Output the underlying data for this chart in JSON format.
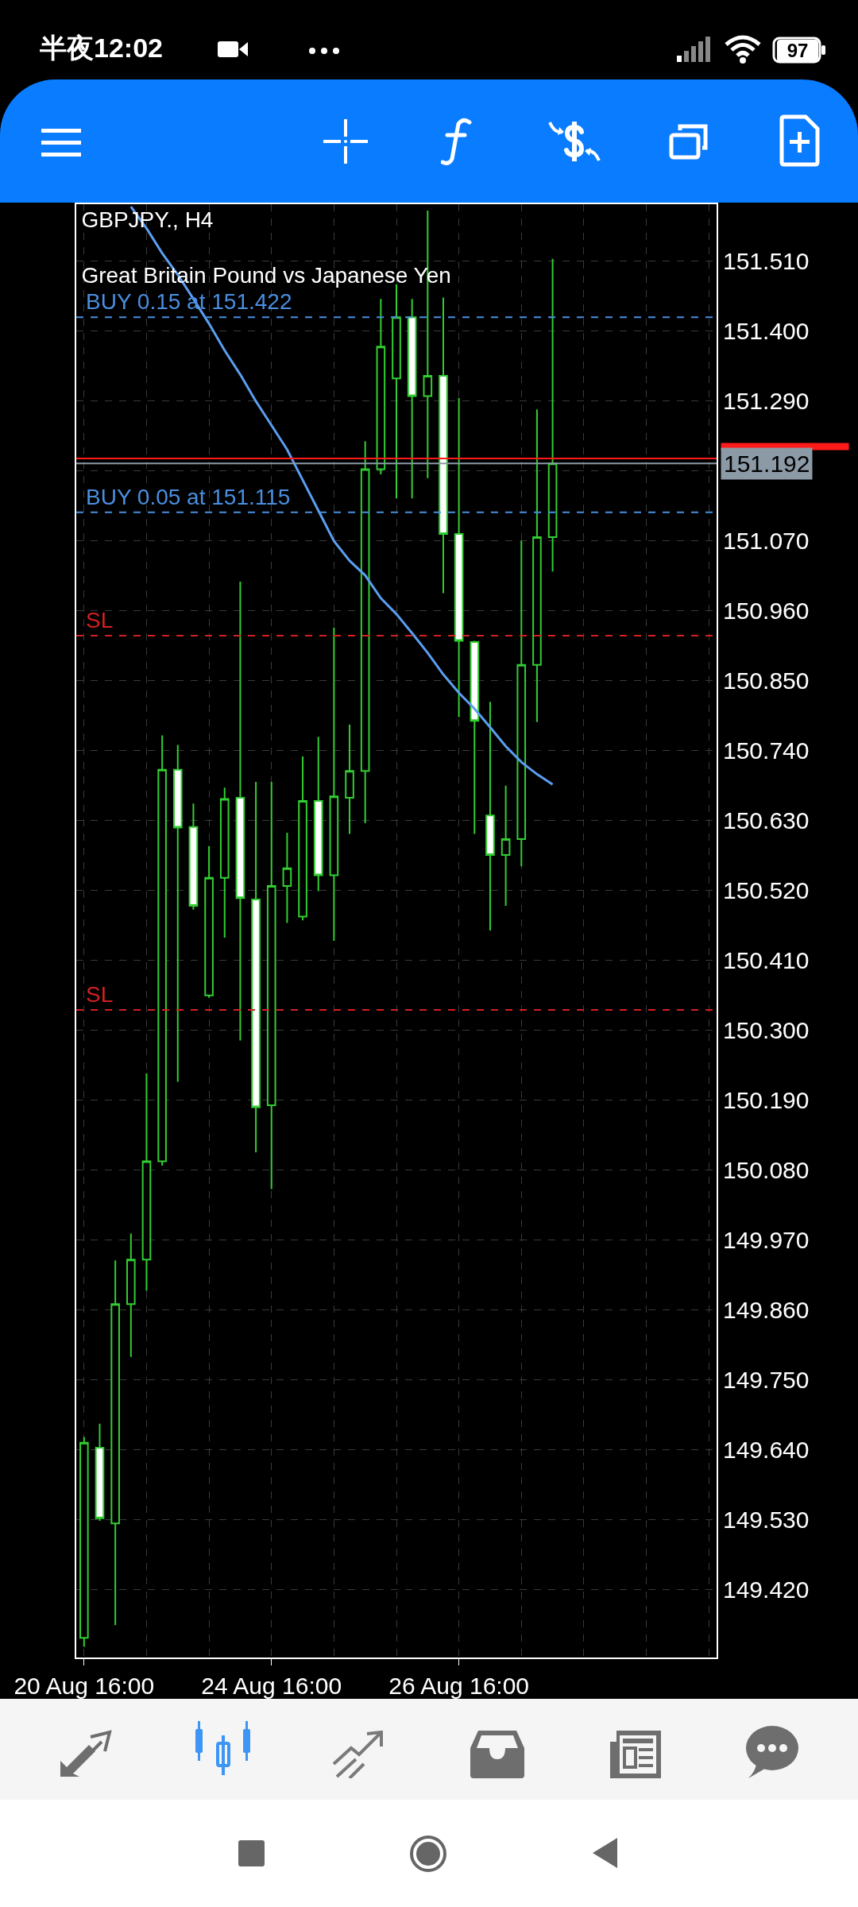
{
  "chart_data": {
    "type": "candlestick",
    "title": "GBPJPY., H4",
    "subtitle": "Great Britain Pound vs Japanese Yen",
    "categories": [
      "20 Aug 16:00",
      null,
      null,
      null,
      null,
      null,
      null,
      null,
      null,
      null,
      null,
      null,
      "24 Aug 16:00",
      null,
      null,
      null,
      null,
      null,
      null,
      null,
      null,
      null,
      null,
      null,
      "26 Aug 16:00",
      null,
      null,
      null,
      null,
      null,
      null,
      null,
      null,
      null,
      null,
      null,
      null,
      null,
      null,
      null,
      null
    ],
    "color": "#32cd32",
    "ohlc": [
      [
        149.344,
        149.66,
        149.33,
        149.651
      ],
      [
        149.643,
        149.681,
        149.528,
        149.532
      ],
      [
        149.524,
        149.938,
        149.364,
        149.869
      ],
      [
        149.869,
        149.98,
        149.786,
        149.939
      ],
      [
        149.939,
        150.232,
        149.89,
        150.094
      ],
      [
        150.094,
        150.764,
        150.087,
        150.71
      ],
      [
        150.71,
        150.749,
        150.219,
        150.619
      ],
      [
        150.62,
        150.657,
        150.49,
        150.496
      ],
      [
        150.355,
        150.59,
        150.351,
        150.54
      ],
      [
        150.54,
        150.682,
        150.446,
        150.664
      ],
      [
        150.666,
        151.006,
        150.284,
        150.508
      ],
      [
        150.506,
        150.691,
        150.108,
        150.179
      ],
      [
        150.182,
        150.691,
        150.05,
        150.527
      ],
      [
        150.527,
        150.611,
        150.469,
        150.555
      ],
      [
        150.479,
        150.731,
        150.473,
        150.661
      ],
      [
        150.661,
        150.762,
        150.519,
        150.544
      ],
      [
        150.544,
        150.934,
        150.441,
        150.668
      ],
      [
        150.666,
        150.781,
        150.609,
        150.708
      ],
      [
        150.708,
        151.227,
        150.626,
        151.183
      ],
      [
        151.183,
        151.451,
        151.175,
        151.376
      ],
      [
        151.326,
        151.474,
        151.137,
        151.422
      ],
      [
        151.422,
        151.451,
        151.137,
        151.298
      ],
      [
        151.298,
        151.59,
        151.169,
        151.33
      ],
      [
        151.33,
        151.453,
        150.988,
        151.081
      ],
      [
        151.081,
        151.295,
        150.793,
        150.913
      ],
      [
        150.911,
        150.913,
        150.609,
        150.787
      ],
      [
        150.638,
        150.817,
        150.457,
        150.576
      ],
      [
        150.576,
        150.685,
        150.496,
        150.601
      ],
      [
        150.601,
        151.07,
        150.558,
        150.875
      ],
      [
        150.875,
        151.277,
        150.785,
        151.076
      ],
      [
        151.076,
        151.514,
        151.022,
        151.192
      ],
      null,
      null,
      null,
      null,
      null,
      null,
      null,
      null,
      null,
      null
    ],
    "series": [
      {
        "type": "line",
        "color": "#5b9ef0",
        "values": [
          null,
          null,
          null,
          151.596,
          151.562,
          151.523,
          151.489,
          151.451,
          151.412,
          151.37,
          151.332,
          151.29,
          151.252,
          151.214,
          151.166,
          151.118,
          151.07,
          151.039,
          151.016,
          150.98,
          150.955,
          150.925,
          150.894,
          150.86,
          150.831,
          150.806,
          150.777,
          150.747,
          150.722,
          150.703,
          150.687,
          null,
          null,
          null,
          null,
          null,
          null,
          null,
          null,
          null,
          null
        ]
      }
    ],
    "ylim": [
      149.313,
      151.6
    ],
    "yticks": [
      {
        "value": 151.51,
        "label": "151.510"
      },
      {
        "value": 151.4,
        "label": "151.400"
      },
      {
        "value": 151.29,
        "label": "151.290"
      },
      {
        "value": 151.18,
        "label": null
      },
      {
        "value": 151.07,
        "label": "151.070"
      },
      {
        "value": 150.96,
        "label": "150.960"
      },
      {
        "value": 150.85,
        "label": "150.850"
      },
      {
        "value": 150.74,
        "label": "150.740"
      },
      {
        "value": 150.63,
        "label": "150.630"
      },
      {
        "value": 150.52,
        "label": "150.520"
      },
      {
        "value": 150.41,
        "label": "150.410"
      },
      {
        "value": 150.3,
        "label": "150.300"
      },
      {
        "value": 150.19,
        "label": "150.190"
      },
      {
        "value": 150.08,
        "label": "150.080"
      },
      {
        "value": 149.97,
        "label": "149.970"
      },
      {
        "value": 149.86,
        "label": "149.860"
      },
      {
        "value": 149.75,
        "label": "149.750"
      },
      {
        "value": 149.64,
        "label": "149.640"
      },
      {
        "value": 149.53,
        "label": "149.530"
      },
      {
        "value": 149.42,
        "label": "149.420"
      }
    ],
    "grid": true,
    "ref_lines": [
      {
        "axis": "y",
        "value": 151.422,
        "label": "BUY 0.15 at 151.422",
        "color": "#4a8fe0",
        "line_style": "dashed"
      },
      {
        "axis": "y",
        "value": 151.115,
        "label": "BUY 0.05 at 151.115",
        "color": "#4a8fe0",
        "line_style": "dashed"
      },
      {
        "axis": "y",
        "value": 150.921,
        "label": "SL",
        "color": "#d42020",
        "line_style": "dashed"
      },
      {
        "axis": "y",
        "value": 150.332,
        "label": "SL",
        "color": "#d42020",
        "line_style": "dashed"
      },
      {
        "axis": "y",
        "value": 151.2,
        "color": "#ff1a1a",
        "line_style": "solid"
      },
      {
        "axis": "y",
        "value": 151.192,
        "label": "151.192",
        "color": "#8c9aa6",
        "line_style": "solid"
      }
    ],
    "annotations": [
      "半夜12:02",
      "97"
    ]
  }
}
